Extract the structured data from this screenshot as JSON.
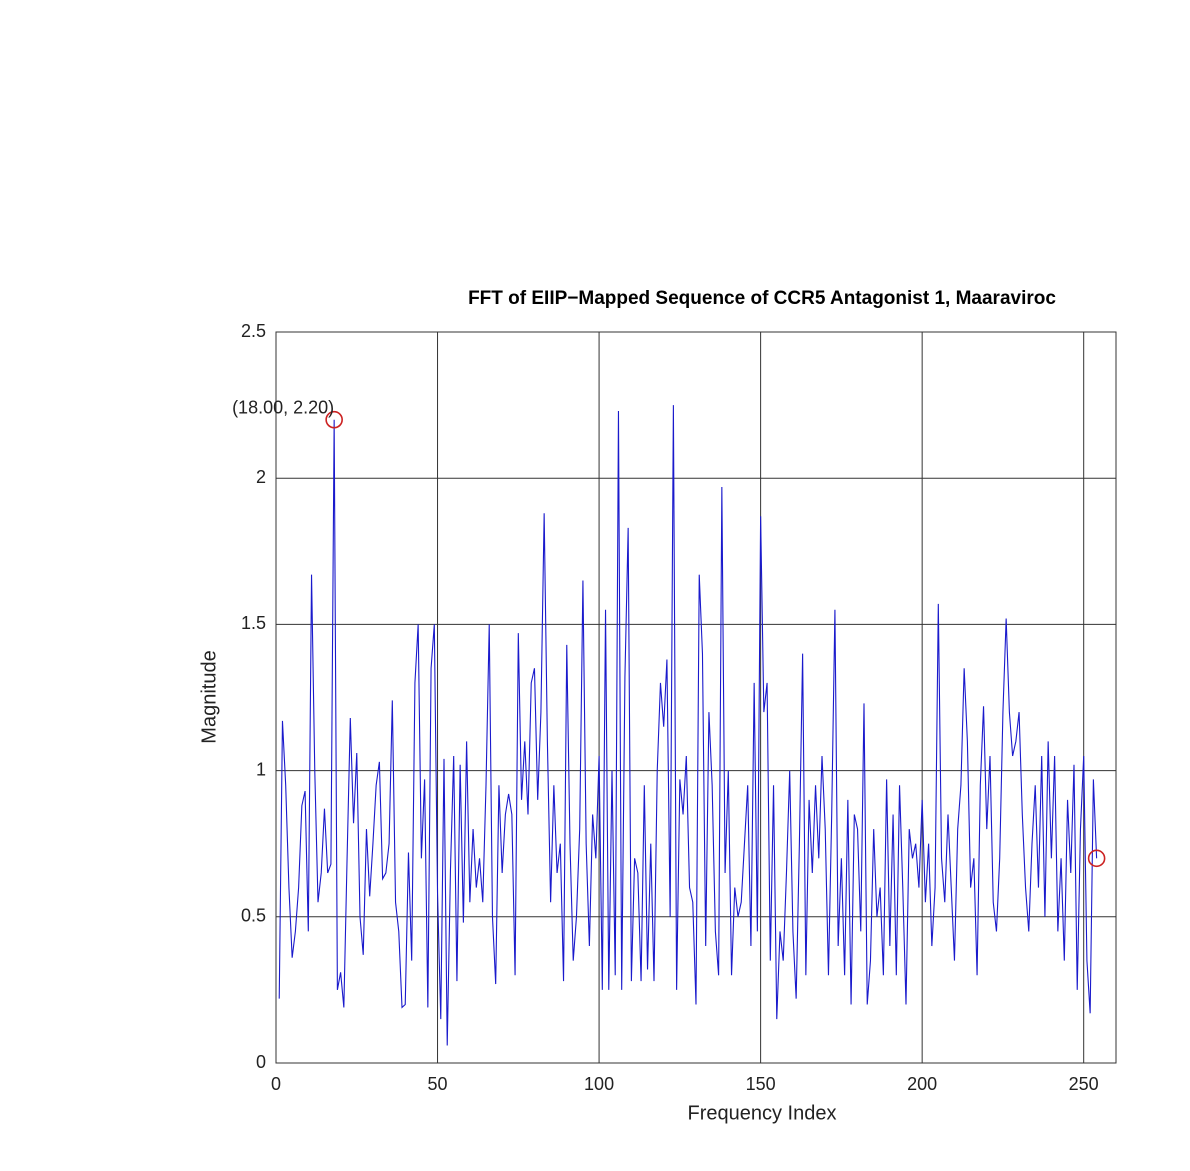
{
  "chart_data": {
    "type": "line",
    "title": "FFT of EIIP−Mapped Sequence of CCR5 Antagonist 1,  Maaraviroc",
    "xlabel": "Frequency Index",
    "ylabel": "Magnitude",
    "x": [
      1,
      2,
      3,
      4,
      5,
      6,
      7,
      8,
      9,
      10,
      11,
      12,
      13,
      14,
      15,
      16,
      17,
      18,
      19,
      20,
      21,
      22,
      23,
      24,
      25,
      26,
      27,
      28,
      29,
      30,
      31,
      32,
      33,
      34,
      35,
      36,
      37,
      38,
      39,
      40,
      41,
      42,
      43,
      44,
      45,
      46,
      47,
      48,
      49,
      50,
      51,
      52,
      53,
      54,
      55,
      56,
      57,
      58,
      59,
      60,
      61,
      62,
      63,
      64,
      65,
      66,
      67,
      68,
      69,
      70,
      71,
      72,
      73,
      74,
      75,
      76,
      77,
      78,
      79,
      80,
      81,
      82,
      83,
      84,
      85,
      86,
      87,
      88,
      89,
      90,
      91,
      92,
      93,
      94,
      95,
      96,
      97,
      98,
      99,
      100,
      101,
      102,
      103,
      104,
      105,
      106,
      107,
      108,
      109,
      110,
      111,
      112,
      113,
      114,
      115,
      116,
      117,
      118,
      119,
      120,
      121,
      122,
      123,
      124,
      125,
      126,
      127,
      128,
      129,
      130,
      131,
      132,
      133,
      134,
      135,
      136,
      137,
      138,
      139,
      140,
      141,
      142,
      143,
      144,
      145,
      146,
      147,
      148,
      149,
      150,
      151,
      152,
      153,
      154,
      155,
      156,
      157,
      158,
      159,
      160,
      161,
      162,
      163,
      164,
      165,
      166,
      167,
      168,
      169,
      170,
      171,
      172,
      173,
      174,
      175,
      176,
      177,
      178,
      179,
      180,
      181,
      182,
      183,
      184,
      185,
      186,
      187,
      188,
      189,
      190,
      191,
      192,
      193,
      194,
      195,
      196,
      197,
      198,
      199,
      200,
      201,
      202,
      203,
      204,
      205,
      206,
      207,
      208,
      209,
      210,
      211,
      212,
      213,
      214,
      215,
      216,
      217,
      218,
      219,
      220,
      221,
      222,
      223,
      224,
      225,
      226,
      227,
      228,
      229,
      230,
      231,
      232,
      233,
      234,
      235,
      236,
      237,
      238,
      239,
      240,
      241,
      242,
      243,
      244,
      245,
      246,
      247,
      248,
      249,
      250,
      251,
      252,
      253,
      254
    ],
    "series": [
      {
        "color": "#1a1acc",
        "values": [
          0.22,
          1.17,
          0.95,
          0.6,
          0.36,
          0.45,
          0.6,
          0.88,
          0.93,
          0.45,
          1.67,
          1.0,
          0.55,
          0.65,
          0.87,
          0.65,
          0.68,
          2.2,
          0.25,
          0.31,
          0.19,
          0.7,
          1.18,
          0.82,
          1.06,
          0.5,
          0.37,
          0.8,
          0.57,
          0.75,
          0.95,
          1.03,
          0.63,
          0.65,
          0.75,
          1.24,
          0.55,
          0.45,
          0.19,
          0.2,
          0.72,
          0.35,
          1.3,
          1.5,
          0.7,
          0.97,
          0.19,
          1.35,
          1.5,
          0.58,
          0.15,
          1.04,
          0.06,
          0.66,
          1.05,
          0.28,
          1.02,
          0.48,
          1.1,
          0.55,
          0.8,
          0.6,
          0.7,
          0.55,
          0.95,
          1.5,
          0.5,
          0.27,
          0.95,
          0.65,
          0.85,
          0.92,
          0.85,
          0.3,
          1.47,
          0.9,
          1.1,
          0.85,
          1.3,
          1.35,
          0.9,
          1.2,
          1.88,
          1.1,
          0.55,
          0.95,
          0.65,
          0.75,
          0.28,
          1.43,
          0.75,
          0.35,
          0.5,
          0.8,
          1.65,
          0.75,
          0.4,
          0.85,
          0.7,
          1.05,
          0.25,
          1.55,
          0.25,
          1.0,
          0.3,
          2.23,
          0.25,
          1.32,
          1.83,
          0.28,
          0.7,
          0.65,
          0.28,
          0.95,
          0.32,
          0.75,
          0.28,
          1.0,
          1.3,
          1.15,
          1.38,
          0.5,
          2.25,
          0.25,
          0.97,
          0.85,
          1.05,
          0.6,
          0.55,
          0.2,
          1.67,
          1.4,
          0.4,
          1.2,
          0.95,
          0.45,
          0.3,
          1.97,
          0.65,
          1.0,
          0.3,
          0.6,
          0.5,
          0.55,
          0.75,
          0.95,
          0.4,
          1.3,
          0.45,
          1.87,
          1.2,
          1.3,
          0.35,
          0.95,
          0.15,
          0.45,
          0.35,
          0.65,
          1.0,
          0.45,
          0.22,
          0.75,
          1.4,
          0.3,
          0.9,
          0.65,
          0.95,
          0.7,
          1.05,
          0.8,
          0.3,
          0.85,
          1.55,
          0.4,
          0.7,
          0.3,
          0.9,
          0.2,
          0.85,
          0.8,
          0.45,
          1.23,
          0.2,
          0.35,
          0.8,
          0.5,
          0.6,
          0.3,
          0.97,
          0.4,
          0.85,
          0.3,
          0.95,
          0.6,
          0.2,
          0.8,
          0.7,
          0.75,
          0.6,
          0.9,
          0.55,
          0.75,
          0.4,
          0.6,
          1.57,
          0.7,
          0.55,
          0.85,
          0.6,
          0.35,
          0.8,
          0.95,
          1.35,
          1.1,
          0.6,
          0.7,
          0.3,
          0.95,
          1.22,
          0.8,
          1.05,
          0.55,
          0.45,
          0.7,
          1.2,
          1.52,
          1.2,
          1.05,
          1.1,
          1.2,
          0.85,
          0.6,
          0.45,
          0.75,
          0.95,
          0.6,
          1.05,
          0.5,
          1.1,
          0.7,
          1.05,
          0.45,
          0.7,
          0.35,
          0.9,
          0.65,
          1.02,
          0.25,
          0.8,
          1.05,
          0.35,
          0.17,
          0.97,
          0.7
        ]
      }
    ],
    "markers": [
      {
        "x": 18,
        "y": 2.2,
        "label": "(18.00, 2.20)",
        "color": "#cc2222"
      },
      {
        "x": 254,
        "y": 0.7,
        "color": "#cc2222"
      }
    ],
    "xlim": [
      0,
      260
    ],
    "ylim": [
      0,
      2.5
    ],
    "xticks": [
      0,
      50,
      100,
      150,
      200,
      250
    ],
    "yticks": [
      0,
      0.5,
      1,
      1.5,
      2,
      2.5
    ],
    "grid": true
  }
}
